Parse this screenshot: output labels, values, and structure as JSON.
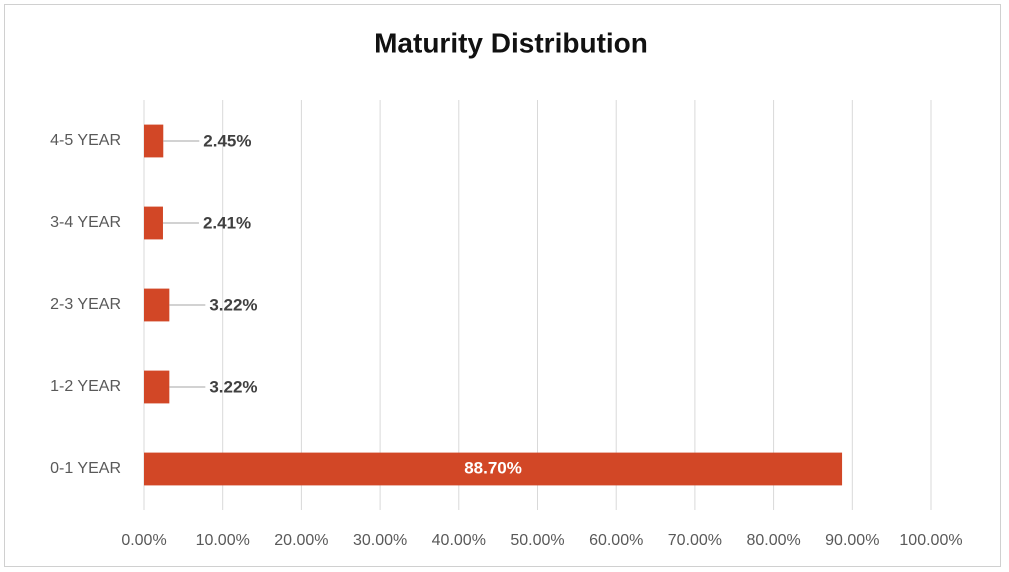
{
  "chart_data": {
    "type": "bar",
    "orientation": "horizontal",
    "title": "Maturity Distribution",
    "categories": [
      "0-1 YEAR",
      "1-2 YEAR",
      "2-3 YEAR",
      "3-4 YEAR",
      "4-5 YEAR"
    ],
    "values": [
      88.7,
      3.22,
      3.22,
      2.41,
      2.45
    ],
    "value_labels": [
      "88.70%",
      "3.22%",
      "3.22%",
      "2.41%",
      "2.45%"
    ],
    "color": "#d24726",
    "xlim": [
      0,
      100
    ],
    "xticks": [
      {
        "value": 0,
        "label": "0.00%"
      },
      {
        "value": 10,
        "label": "10.00%"
      },
      {
        "value": 20,
        "label": "20.00%"
      },
      {
        "value": 30,
        "label": "30.00%"
      },
      {
        "value": 40,
        "label": "40.00%"
      },
      {
        "value": 50,
        "label": "50.00%"
      },
      {
        "value": 60,
        "label": "60.00%"
      },
      {
        "value": 70,
        "label": "70.00%"
      },
      {
        "value": 80,
        "label": "80.00%"
      },
      {
        "value": 90,
        "label": "90.00%"
      },
      {
        "value": 100,
        "label": "100.00%"
      }
    ],
    "grid": true
  }
}
